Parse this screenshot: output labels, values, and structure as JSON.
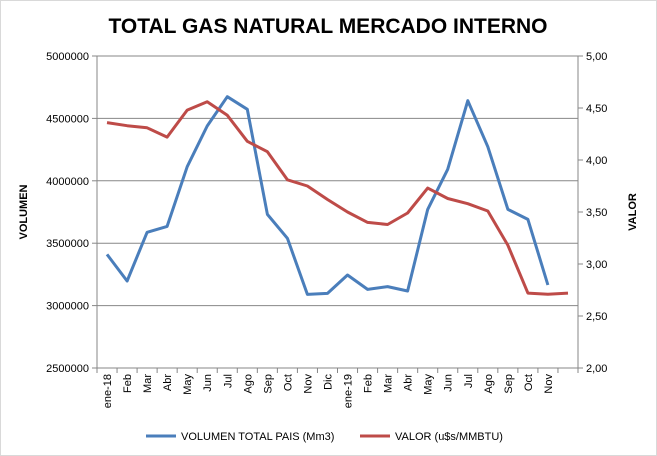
{
  "chart_data": {
    "type": "line",
    "title": "TOTAL GAS NATURAL MERCADO INTERNO",
    "ylabel": "VOLUMEN",
    "y2label": "VALOR",
    "categories": [
      "ene-18",
      "Feb",
      "Mar",
      "Abr",
      "May",
      "Jun",
      "Jul",
      "Ago",
      "Sep",
      "Oct",
      "Nov",
      "Dic",
      "ene-19",
      "Feb",
      "Mar",
      "Abr",
      "May",
      "Jun",
      "Jul",
      "Ago",
      "Sep",
      "Oct",
      "Nov",
      ""
    ],
    "ylim": [
      2500000,
      5000000
    ],
    "y2lim": [
      2.0,
      5.0
    ],
    "yticks": [
      "2500000",
      "3000000",
      "3500000",
      "4000000",
      "4500000",
      "5000000"
    ],
    "y2ticks": [
      "2,00",
      "2,50",
      "3,00",
      "3,50",
      "4,00",
      "4,50",
      "5,00"
    ],
    "grid": true,
    "legend_position": "bottom",
    "series": [
      {
        "name": "VOLUMEN TOTAL PAIS (Mm3)",
        "axis": "left",
        "color": "#4a7ebb",
        "values": [
          3410000,
          3197000,
          3587000,
          3635000,
          4113000,
          4439000,
          4674000,
          4573000,
          3731000,
          3539000,
          3090000,
          3098000,
          3245000,
          3130000,
          3152000,
          3117000,
          3771000,
          4092000,
          4642000,
          4273000,
          3771000,
          3691000,
          3165000,
          null
        ]
      },
      {
        "name": "VALOR (u$s/MMBTU)",
        "axis": "right",
        "color": "#be4b48",
        "values": [
          4.36,
          4.33,
          4.31,
          4.22,
          4.48,
          4.56,
          4.43,
          4.18,
          4.08,
          3.81,
          3.75,
          3.62,
          3.5,
          3.4,
          3.38,
          3.49,
          3.73,
          3.63,
          3.58,
          3.51,
          3.18,
          2.72,
          2.71,
          2.72
        ]
      }
    ]
  }
}
